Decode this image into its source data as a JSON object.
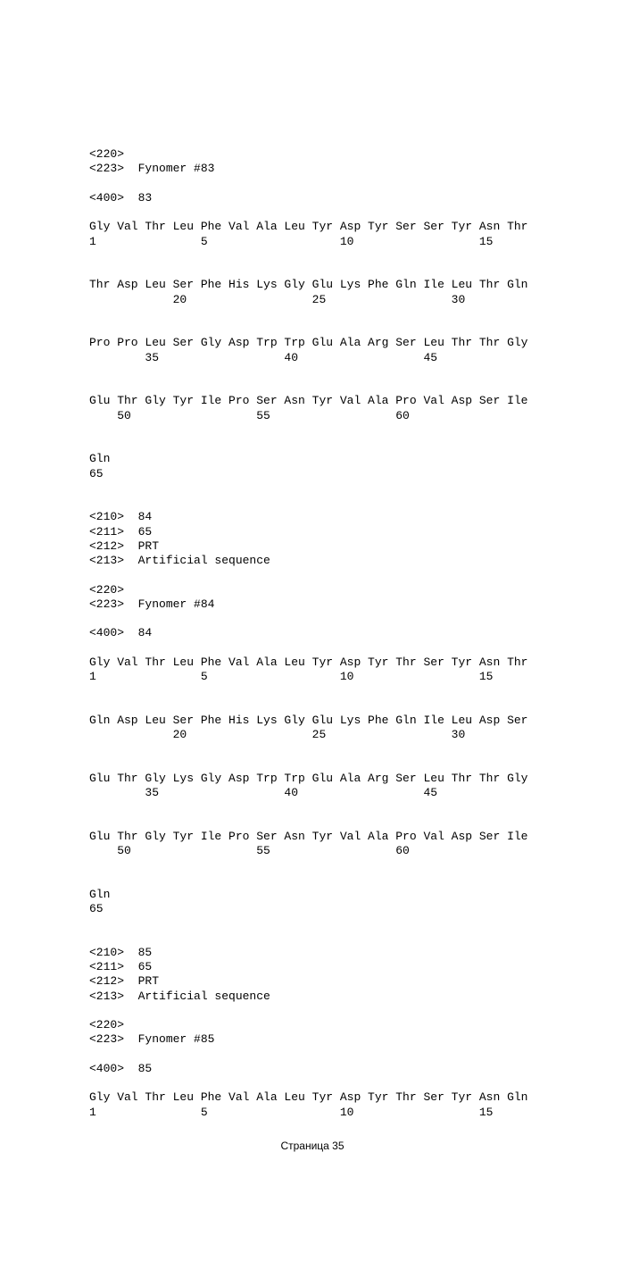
{
  "page": {
    "footer": "Страница 35"
  },
  "blocks": [
    {
      "headerLines": [
        "<220>",
        "<223>  Fynomer #83",
        "",
        "<400>  83"
      ],
      "sequence": {
        "rows": [
          {
            "residues": [
              "Gly",
              "Val",
              "Thr",
              "Leu",
              "Phe",
              "Val",
              "Ala",
              "Leu",
              "Tyr",
              "Asp",
              "Tyr",
              "Ser",
              "Ser",
              "Tyr",
              "Asn",
              "Thr"
            ],
            "numbers": [
              "1",
              "",
              "",
              "",
              "5",
              "",
              "",
              "",
              "",
              "10",
              "",
              "",
              "",
              "",
              "15",
              ""
            ]
          },
          {
            "residues": [
              "Thr",
              "Asp",
              "Leu",
              "Ser",
              "Phe",
              "His",
              "Lys",
              "Gly",
              "Glu",
              "Lys",
              "Phe",
              "Gln",
              "Ile",
              "Leu",
              "Thr",
              "Gln"
            ],
            "numbers": [
              "",
              "",
              "",
              "20",
              "",
              "",
              "",
              "",
              "25",
              "",
              "",
              "",
              "",
              "30",
              "",
              ""
            ]
          },
          {
            "residues": [
              "Pro",
              "Pro",
              "Leu",
              "Ser",
              "Gly",
              "Asp",
              "Trp",
              "Trp",
              "Glu",
              "Ala",
              "Arg",
              "Ser",
              "Leu",
              "Thr",
              "Thr",
              "Gly"
            ],
            "numbers": [
              "",
              "",
              "35",
              "",
              "",
              "",
              "",
              "40",
              "",
              "",
              "",
              "",
              "45",
              "",
              "",
              ""
            ]
          },
          {
            "residues": [
              "Glu",
              "Thr",
              "Gly",
              "Tyr",
              "Ile",
              "Pro",
              "Ser",
              "Asn",
              "Tyr",
              "Val",
              "Ala",
              "Pro",
              "Val",
              "Asp",
              "Ser",
              "Ile"
            ],
            "numbers": [
              "",
              "50",
              "",
              "",
              "",
              "",
              "55",
              "",
              "",
              "",
              "",
              "60",
              "",
              "",
              "",
              ""
            ]
          },
          {
            "residues": [
              "Gln",
              "",
              "",
              "",
              "",
              "",
              "",
              "",
              "",
              "",
              "",
              "",
              "",
              "",
              "",
              ""
            ],
            "numbers": [
              "65",
              "",
              "",
              "",
              "",
              "",
              "",
              "",
              "",
              "",
              "",
              "",
              "",
              "",
              "",
              ""
            ]
          }
        ]
      }
    },
    {
      "headerLines": [
        "<210>  84",
        "<211>  65",
        "<212>  PRT",
        "<213>  Artificial sequence",
        "",
        "<220>",
        "<223>  Fynomer #84",
        "",
        "<400>  84"
      ],
      "sequence": {
        "rows": [
          {
            "residues": [
              "Gly",
              "Val",
              "Thr",
              "Leu",
              "Phe",
              "Val",
              "Ala",
              "Leu",
              "Tyr",
              "Asp",
              "Tyr",
              "Thr",
              "Ser",
              "Tyr",
              "Asn",
              "Thr"
            ],
            "numbers": [
              "1",
              "",
              "",
              "",
              "5",
              "",
              "",
              "",
              "",
              "10",
              "",
              "",
              "",
              "",
              "15",
              ""
            ]
          },
          {
            "residues": [
              "Gln",
              "Asp",
              "Leu",
              "Ser",
              "Phe",
              "His",
              "Lys",
              "Gly",
              "Glu",
              "Lys",
              "Phe",
              "Gln",
              "Ile",
              "Leu",
              "Asp",
              "Ser"
            ],
            "numbers": [
              "",
              "",
              "",
              "20",
              "",
              "",
              "",
              "",
              "25",
              "",
              "",
              "",
              "",
              "30",
              "",
              ""
            ]
          },
          {
            "residues": [
              "Glu",
              "Thr",
              "Gly",
              "Lys",
              "Gly",
              "Asp",
              "Trp",
              "Trp",
              "Glu",
              "Ala",
              "Arg",
              "Ser",
              "Leu",
              "Thr",
              "Thr",
              "Gly"
            ],
            "numbers": [
              "",
              "",
              "35",
              "",
              "",
              "",
              "",
              "40",
              "",
              "",
              "",
              "",
              "45",
              "",
              "",
              ""
            ]
          },
          {
            "residues": [
              "Glu",
              "Thr",
              "Gly",
              "Tyr",
              "Ile",
              "Pro",
              "Ser",
              "Asn",
              "Tyr",
              "Val",
              "Ala",
              "Pro",
              "Val",
              "Asp",
              "Ser",
              "Ile"
            ],
            "numbers": [
              "",
              "50",
              "",
              "",
              "",
              "",
              "55",
              "",
              "",
              "",
              "",
              "60",
              "",
              "",
              "",
              ""
            ]
          },
          {
            "residues": [
              "Gln",
              "",
              "",
              "",
              "",
              "",
              "",
              "",
              "",
              "",
              "",
              "",
              "",
              "",
              "",
              ""
            ],
            "numbers": [
              "65",
              "",
              "",
              "",
              "",
              "",
              "",
              "",
              "",
              "",
              "",
              "",
              "",
              "",
              "",
              ""
            ]
          }
        ]
      }
    },
    {
      "headerLines": [
        "<210>  85",
        "<211>  65",
        "<212>  PRT",
        "<213>  Artificial sequence",
        "",
        "<220>",
        "<223>  Fynomer #85",
        "",
        "<400>  85"
      ],
      "sequence": {
        "rows": [
          {
            "residues": [
              "Gly",
              "Val",
              "Thr",
              "Leu",
              "Phe",
              "Val",
              "Ala",
              "Leu",
              "Tyr",
              "Asp",
              "Tyr",
              "Thr",
              "Ser",
              "Tyr",
              "Asn",
              "Gln"
            ],
            "numbers": [
              "1",
              "",
              "",
              "",
              "5",
              "",
              "",
              "",
              "",
              "10",
              "",
              "",
              "",
              "",
              "15",
              ""
            ]
          }
        ]
      }
    }
  ]
}
